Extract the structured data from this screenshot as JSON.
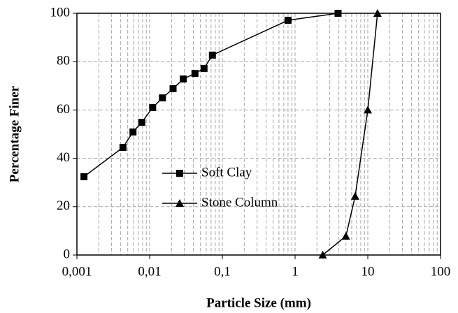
{
  "chart_data": {
    "type": "line",
    "x_label": "Particle Size (mm)",
    "y_label": "Percentage Finer",
    "xscale": "log",
    "xlim": [
      0.001,
      100
    ],
    "xticks": [
      {
        "value": 0.001,
        "label": "0,001"
      },
      {
        "value": 0.01,
        "label": "0,01"
      },
      {
        "value": 0.1,
        "label": "0,1"
      },
      1,
      10,
      100
    ],
    "ylim": [
      0,
      100
    ],
    "yticks": [
      0,
      20,
      40,
      60,
      80,
      100
    ],
    "grid": true,
    "minor_grid": true,
    "series": [
      {
        "name": "Soft Clay",
        "color": "#000000",
        "marker": "square",
        "x": [
          0.00125,
          0.0043,
          0.0059,
          0.0078,
          0.011,
          0.015,
          0.021,
          0.029,
          0.042,
          0.056,
          0.073,
          0.8,
          3.9
        ],
        "values": [
          32.4,
          44.5,
          50.9,
          54.9,
          61,
          65,
          68.8,
          72.8,
          75.1,
          77.2,
          82.7,
          97.1,
          100
        ]
      },
      {
        "name": "Stone Column",
        "color": "#000000",
        "marker": "triangle",
        "x": [
          2.4,
          5.0,
          6.7,
          10,
          13.6
        ],
        "values": [
          0,
          7.8,
          24.3,
          60,
          100
        ]
      }
    ]
  }
}
